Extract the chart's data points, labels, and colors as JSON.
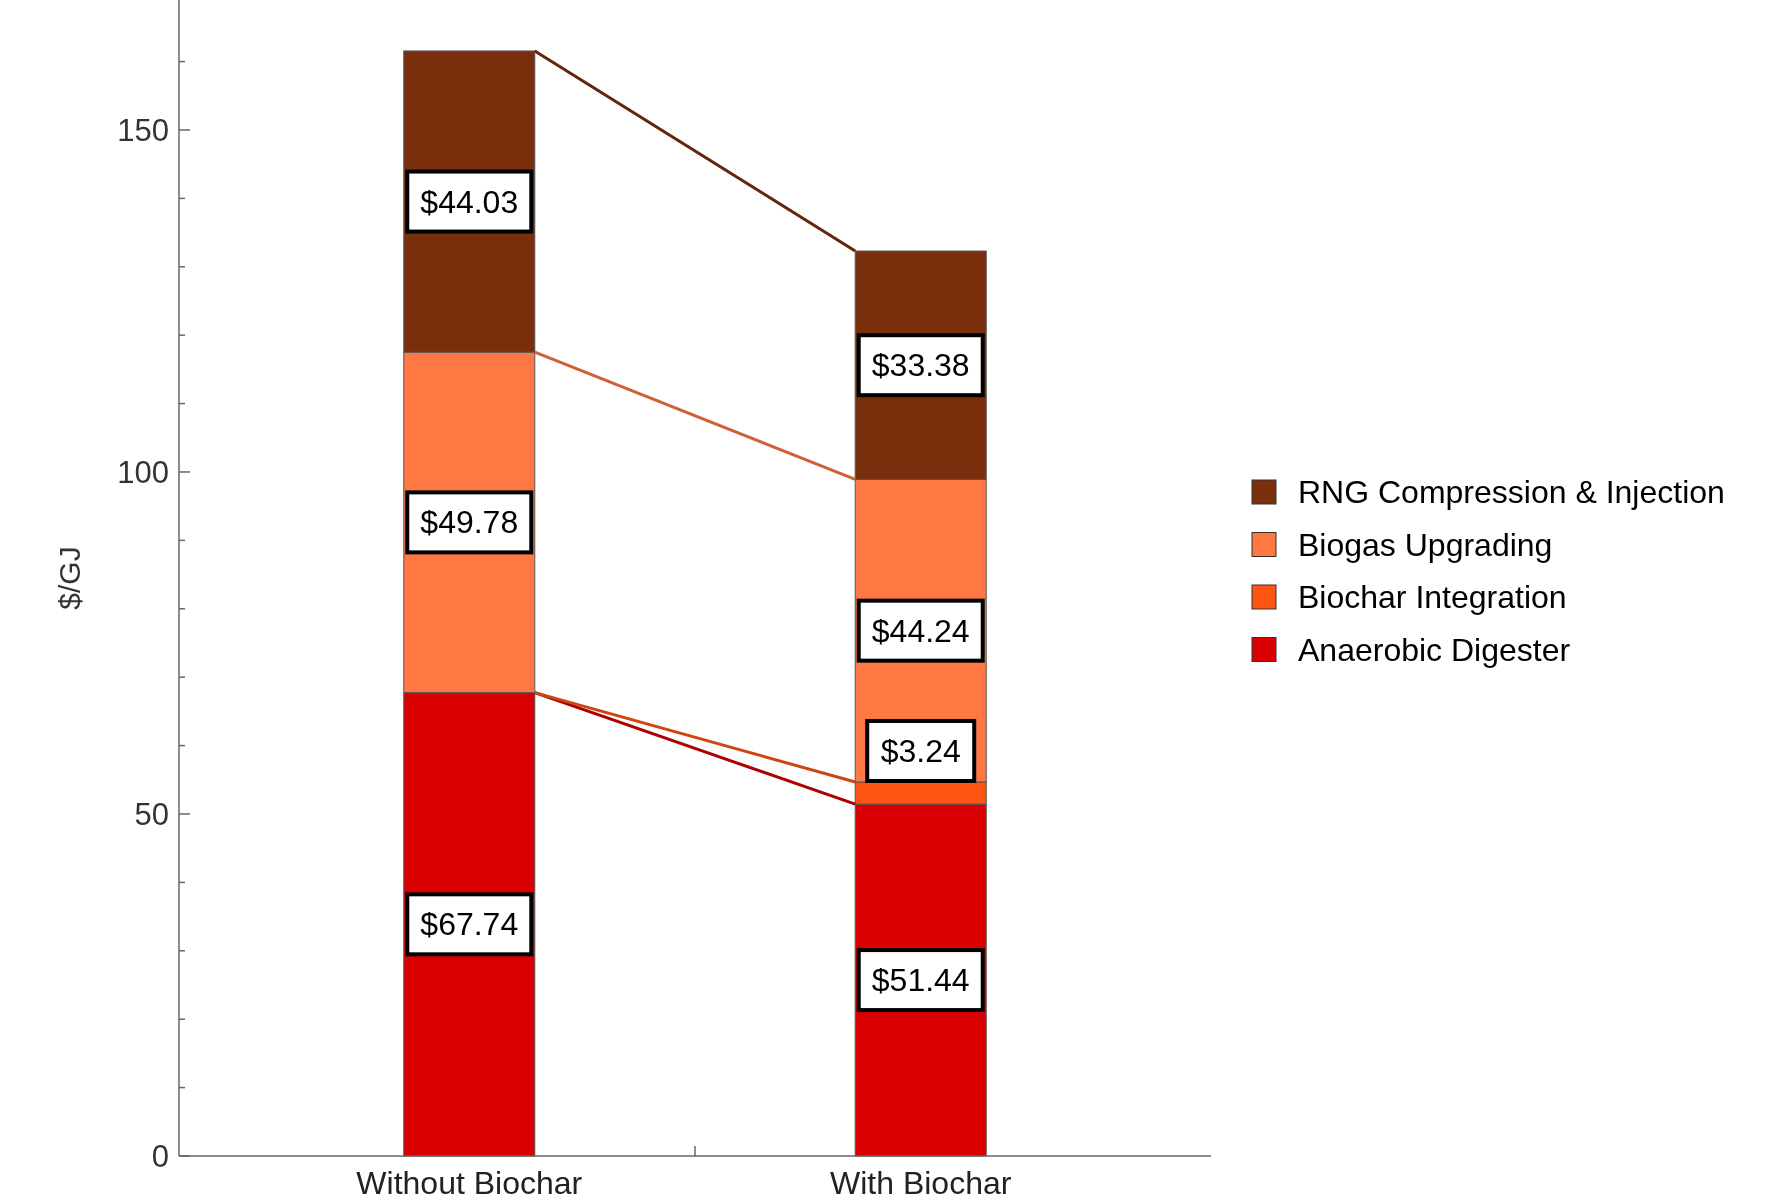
{
  "chart_data": {
    "type": "bar",
    "stacked": true,
    "ylabel": "$/GJ",
    "categories": [
      "Without Biochar",
      "With Biochar"
    ],
    "series": [
      {
        "name": "Anaerobic Digester",
        "color": "#d80000",
        "values": [
          67.74,
          51.44
        ],
        "value_labels": [
          "$67.74",
          "$51.44"
        ]
      },
      {
        "name": "Biochar Integration",
        "color": "#ff5512",
        "values": [
          0,
          3.24
        ],
        "value_labels": [
          null,
          "$3.24"
        ]
      },
      {
        "name": "Biogas Upgrading",
        "color": "#ff7843",
        "values": [
          49.78,
          44.24
        ],
        "value_labels": [
          "$49.78",
          "$44.24"
        ]
      },
      {
        "name": "RNG Compression & Injection",
        "color": "#7a2f0c",
        "values": [
          44.03,
          33.38
        ],
        "value_labels": [
          "$44.03",
          "$33.38"
        ]
      }
    ],
    "ylim": [
      0,
      169
    ],
    "yticks": [
      0,
      {
        "value": 10,
        "label": null
      },
      {
        "value": 20,
        "label": null
      },
      {
        "value": 30,
        "label": null
      },
      {
        "value": 40,
        "label": null
      },
      50,
      {
        "value": 60,
        "label": null
      },
      {
        "value": 70,
        "label": null
      },
      {
        "value": 80,
        "label": null
      },
      {
        "value": 90,
        "label": null
      },
      100,
      {
        "value": 110,
        "label": null
      },
      {
        "value": 120,
        "label": null
      },
      {
        "value": 130,
        "label": null
      },
      {
        "value": 140,
        "label": null
      },
      150,
      {
        "value": 160,
        "label": null
      }
    ],
    "grid": false,
    "legend": "right"
  }
}
